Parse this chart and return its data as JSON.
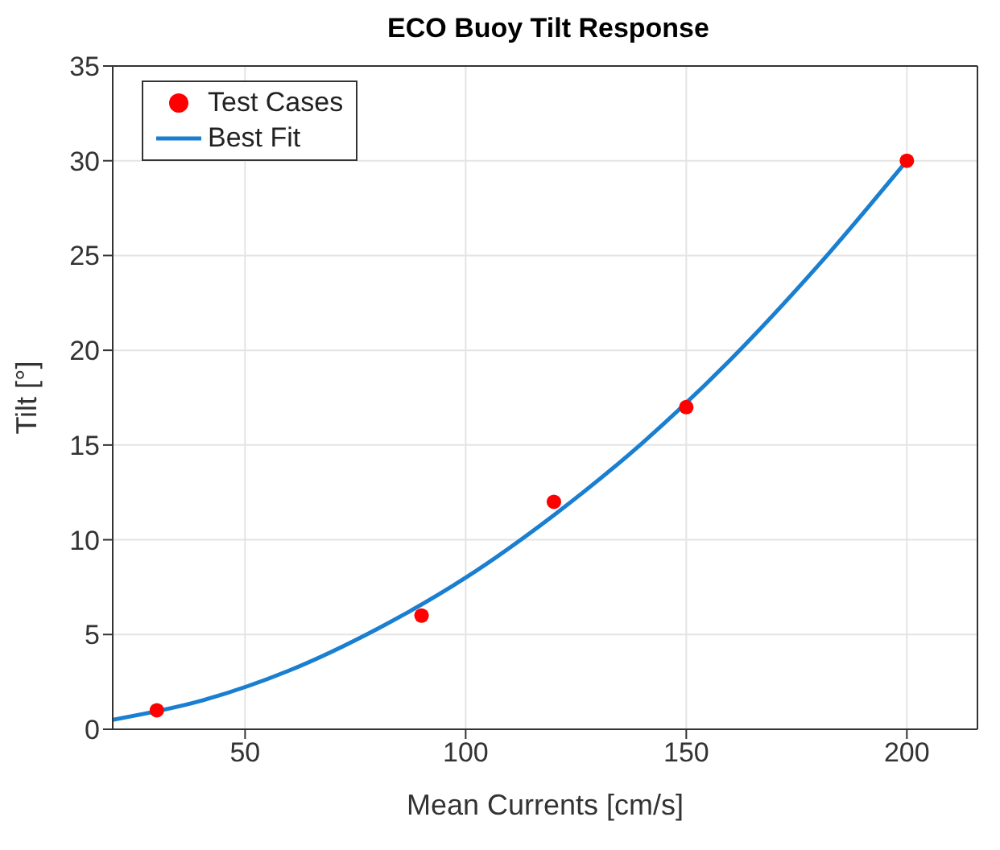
{
  "chart_data": {
    "type": "scatter",
    "title": "ECO Buoy Tilt Response",
    "xlabel": "Mean Currents [cm/s]",
    "ylabel": "Tilt [°]",
    "xlim": [
      20,
      216
    ],
    "xticks": [
      50,
      100,
      150,
      200
    ],
    "ylim": [
      0,
      35
    ],
    "yticks": [
      0,
      5,
      10,
      15,
      20,
      25,
      30,
      35
    ],
    "grid": true,
    "legend": "top left",
    "series": [
      {
        "name": "Test Cases",
        "color": "#ff0000",
        "marker": "circle",
        "x": [
          30,
          90,
          120,
          150,
          200
        ],
        "values": [
          1,
          6,
          12,
          17,
          30
        ]
      },
      {
        "name": "Best Fit",
        "type": "line",
        "color": "#1a7fd0",
        "marker": "none",
        "line_style": "solid",
        "x": [
          20,
          40,
          60,
          80,
          100,
          120,
          140,
          160,
          180,
          200
        ],
        "values": [
          0.5,
          1.5,
          3.1,
          5.3,
          8.0,
          11.3,
          15.1,
          19.5,
          24.5,
          30.0
        ]
      }
    ]
  }
}
